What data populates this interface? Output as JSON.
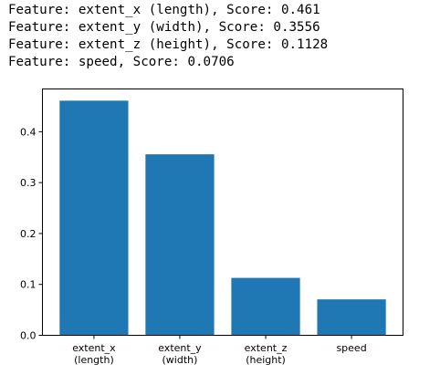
{
  "console": {
    "lines": [
      "Feature: extent_x (length), Score: 0.461",
      "Feature: extent_y (width), Score: 0.3556",
      "Feature: extent_z (height), Score: 0.1128",
      "Feature: speed, Score: 0.0706"
    ]
  },
  "chart_data": {
    "type": "bar",
    "categories": [
      [
        "extent_x",
        "(length)"
      ],
      [
        "extent_y",
        "(width)"
      ],
      [
        "extent_z",
        "(height)"
      ],
      [
        "speed"
      ]
    ],
    "values": [
      0.461,
      0.3556,
      0.1128,
      0.0706
    ],
    "yticks": [
      "0.0",
      "0.1",
      "0.2",
      "0.3",
      "0.4"
    ],
    "title": "",
    "xlabel": "",
    "ylabel": "",
    "ylim": [
      0,
      0.484
    ],
    "grid": false,
    "bar_color": "#1f77b4"
  }
}
